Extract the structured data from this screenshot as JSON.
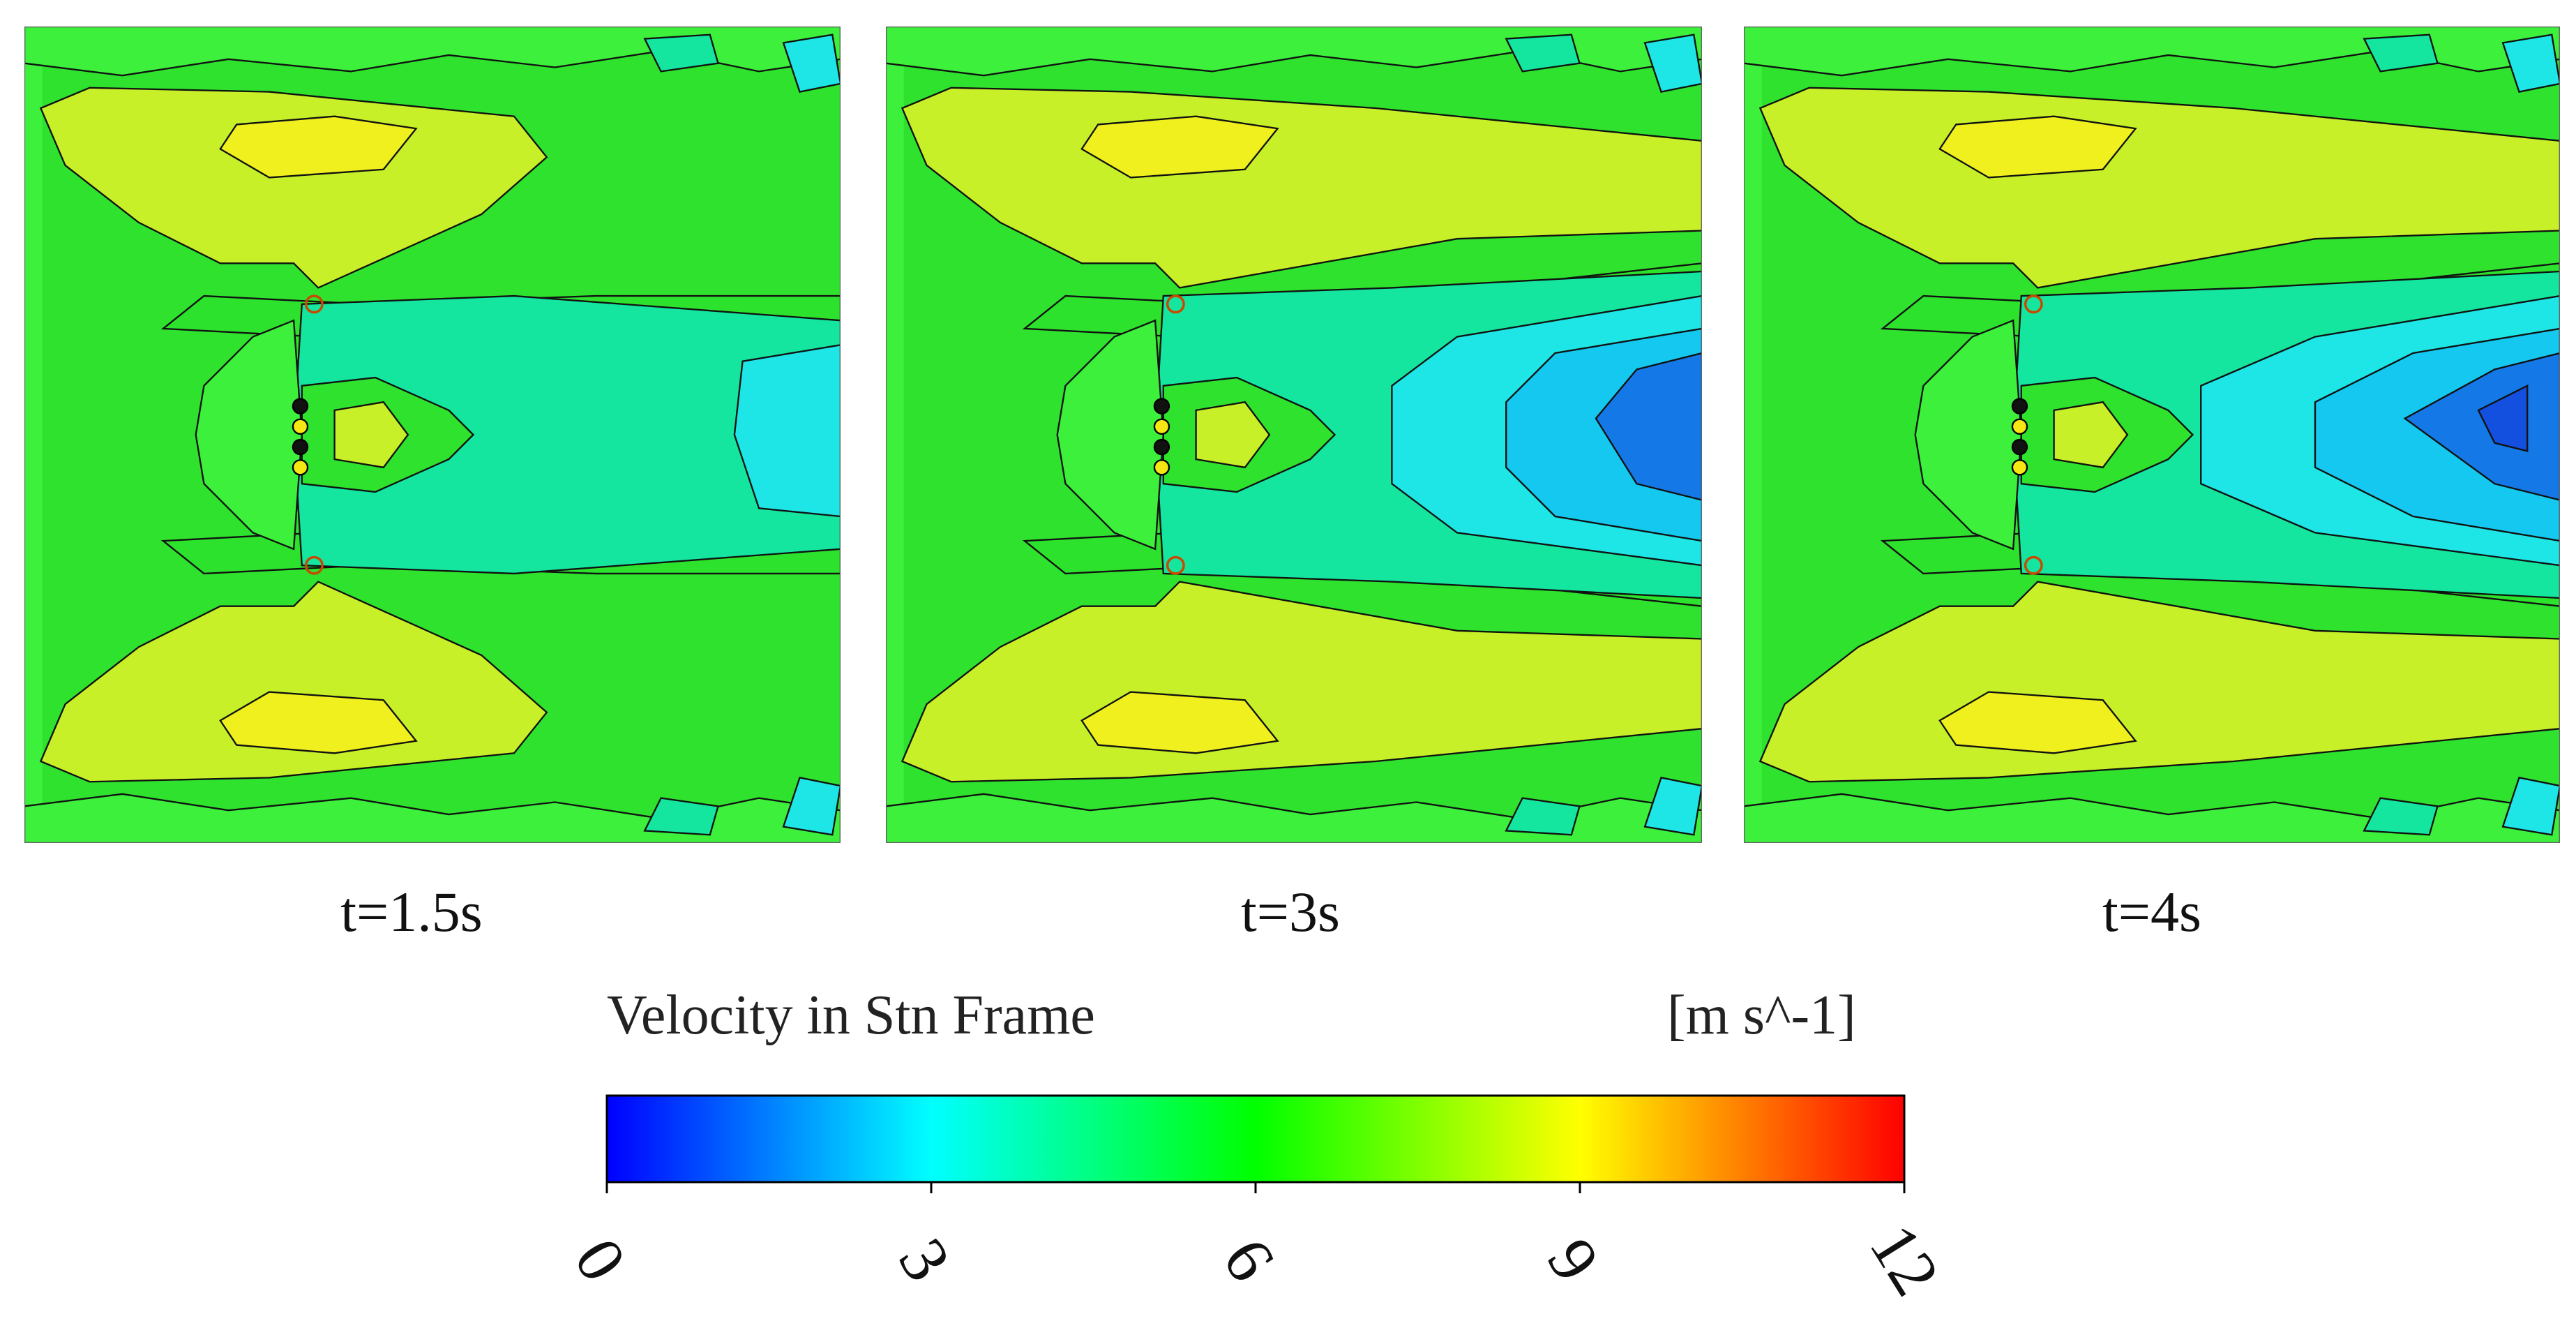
{
  "panels": [
    {
      "caption": "t=1.5s",
      "stage": 0
    },
    {
      "caption": "t=3s",
      "stage": 1
    },
    {
      "caption": "t=4s",
      "stage": 2
    }
  ],
  "legend": {
    "title": "Velocity in Stn Frame",
    "unit": "[m s^-1]",
    "ticks": [
      "0",
      "3",
      "6",
      "9",
      "12"
    ],
    "range": [
      0,
      12
    ],
    "colors": [
      "#0000ff",
      "#00ffff",
      "#00ff00",
      "#ffff00",
      "#ff0000"
    ]
  }
}
